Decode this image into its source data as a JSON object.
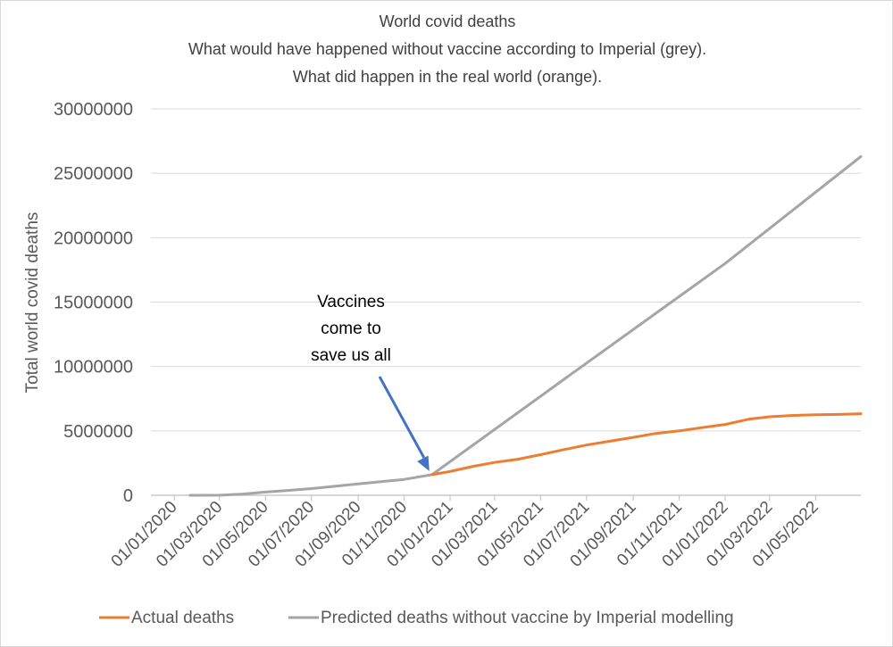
{
  "chart_data": {
    "type": "line",
    "title": "World covid deaths",
    "subtitle": [
      "What would have happened without vaccine according to Imperial (grey).",
      "What did happen in the real world (orange)."
    ],
    "xlabel": "",
    "ylabel": "Total world covid deaths",
    "ylim": [
      0,
      30000000
    ],
    "yticks": [
      0,
      5000000,
      10000000,
      15000000,
      20000000,
      25000000,
      30000000
    ],
    "xlim": [
      "2019-12-01",
      "2022-06-30"
    ],
    "xticks": [
      "01/01/2020",
      "01/03/2020",
      "01/05/2020",
      "01/07/2020",
      "01/09/2020",
      "01/11/2020",
      "01/01/2021",
      "01/03/2021",
      "01/05/2021",
      "01/07/2021",
      "01/09/2021",
      "01/11/2021",
      "01/01/2022",
      "01/03/2022",
      "01/05/2022"
    ],
    "grid": true,
    "legend_position": "bottom",
    "annotation": {
      "lines": [
        "Vaccines",
        "come to",
        "save us all"
      ],
      "points_to": "2020-12-08"
    },
    "series": [
      {
        "name": "Actual deaths",
        "color": "#ED7D31",
        "x": [
          "2020-12-08",
          "2021-01-01",
          "2021-02-01",
          "2021-03-01",
          "2021-04-01",
          "2021-05-01",
          "2021-06-01",
          "2021-07-01",
          "2021-08-01",
          "2021-09-01",
          "2021-10-01",
          "2021-11-01",
          "2021-12-01",
          "2022-01-01",
          "2022-02-01",
          "2022-03-01",
          "2022-04-01",
          "2022-05-01",
          "2022-06-01",
          "2022-06-30"
        ],
        "y": [
          1600000,
          1850000,
          2250000,
          2550000,
          2800000,
          3150000,
          3550000,
          3900000,
          4200000,
          4500000,
          4800000,
          5000000,
          5250000,
          5500000,
          5900000,
          6100000,
          6200000,
          6250000,
          6280000,
          6330000
        ]
      },
      {
        "name": "Predicted deaths without vaccine by Imperial  modelling",
        "color": "#A5A5A5",
        "x": [
          "2020-01-22",
          "2020-03-01",
          "2020-04-01",
          "2020-05-01",
          "2020-06-01",
          "2020-07-01",
          "2020-08-01",
          "2020-09-01",
          "2020-10-01",
          "2020-11-01",
          "2020-12-08",
          "2021-06-01",
          "2022-01-01",
          "2022-06-30"
        ],
        "y": [
          0,
          10000,
          100000,
          250000,
          380000,
          520000,
          700000,
          880000,
          1050000,
          1230000,
          1600000,
          9000000,
          18000000,
          26300000
        ]
      }
    ]
  }
}
